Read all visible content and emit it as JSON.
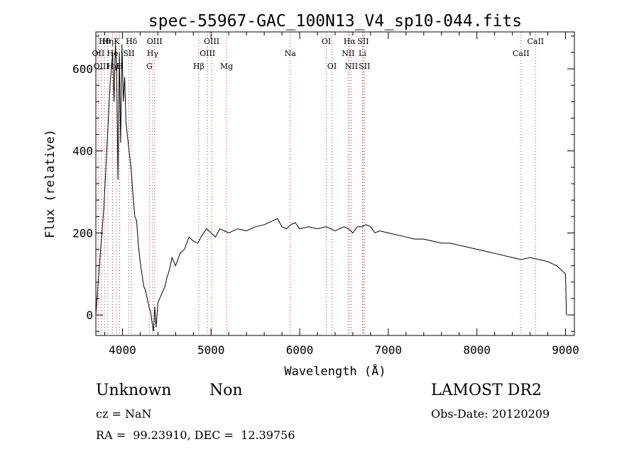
{
  "chart_data": {
    "type": "line",
    "title": "spec-55967-GAC_100N13_V4_sp10-044.fits",
    "xlabel": "Wavelength (Å)",
    "ylabel": "Flux (relative)",
    "xlim": [
      3700,
      9100
    ],
    "ylim": [
      -50,
      690
    ],
    "xticks": [
      4000,
      5000,
      6000,
      7000,
      8000,
      9000
    ],
    "yticks": [
      0,
      200,
      400,
      600
    ],
    "series": [
      {
        "x": [
          3700,
          3740,
          3790,
          3830,
          3860,
          3890,
          3905,
          3920,
          3935,
          3950,
          3965,
          3980,
          3995,
          4010,
          4025,
          4040,
          4060,
          4080,
          4100,
          4120,
          4140,
          4160,
          4180,
          4200,
          4220,
          4240,
          4260,
          4280,
          4300,
          4320,
          4335,
          4350,
          4365,
          4380,
          4400,
          4420,
          4440,
          4460,
          4480,
          4500,
          4530,
          4560,
          4600,
          4650,
          4700,
          4750,
          4800,
          4850,
          4900,
          4950,
          5000,
          5050,
          5100,
          5150,
          5200,
          5300,
          5400,
          5500,
          5600,
          5700,
          5750,
          5800,
          5850,
          5900,
          5950,
          6000,
          6100,
          6200,
          6300,
          6400,
          6500,
          6550,
          6600,
          6650,
          6700,
          6750,
          6800,
          6850,
          6900,
          7000,
          7100,
          7200,
          7300,
          7400,
          7500,
          7600,
          7700,
          7800,
          7900,
          8000,
          8100,
          8200,
          8300,
          8400,
          8500,
          8600,
          8700,
          8800,
          8850,
          8900,
          8950,
          9000,
          9010
        ],
        "values": [
          0,
          120,
          260,
          430,
          560,
          640,
          520,
          660,
          600,
          330,
          640,
          420,
          660,
          520,
          580,
          470,
          430,
          390,
          350,
          290,
          240,
          230,
          170,
          130,
          100,
          70,
          60,
          40,
          20,
          5,
          -20,
          -40,
          20,
          -30,
          30,
          40,
          50,
          60,
          70,
          90,
          110,
          140,
          120,
          150,
          160,
          190,
          180,
          175,
          195,
          210,
          200,
          190,
          210,
          205,
          200,
          210,
          205,
          215,
          220,
          230,
          235,
          215,
          210,
          220,
          225,
          210,
          215,
          210,
          215,
          205,
          215,
          210,
          200,
          215,
          215,
          220,
          215,
          200,
          205,
          200,
          195,
          190,
          185,
          185,
          180,
          175,
          175,
          170,
          165,
          160,
          155,
          150,
          145,
          140,
          135,
          140,
          135,
          130,
          125,
          120,
          110,
          100,
          0
        ]
      }
    ],
    "lines": [
      {
        "label": "Hθ",
        "wave": 3798,
        "row": 1,
        "color": "#000000"
      },
      {
        "label": "OII",
        "wave": 3727,
        "row": 2,
        "color": "#000000"
      },
      {
        "label": "OIII",
        "wave": 3760,
        "row": 3,
        "color": "#000000"
      },
      {
        "label": "Hη",
        "wave": 3835,
        "row": 1,
        "color": "#000000"
      },
      {
        "label": "He",
        "wave": 3889,
        "row": 2,
        "color": "#000000"
      },
      {
        "label": "Hγ",
        "wave": 3889,
        "row": 3,
        "color": "#000000"
      },
      {
        "label": "K",
        "wave": 3934,
        "row": 1,
        "color": "#000000"
      },
      {
        "label": "H",
        "wave": 3969,
        "row": 3,
        "color": "#000000"
      },
      {
        "label": "SII",
        "wave": 4072,
        "row": 2,
        "color": "#000000"
      },
      {
        "label": "Hδ",
        "wave": 4102,
        "row": 1,
        "color": "#000000"
      },
      {
        "label": "OIII",
        "wave": 4363,
        "row": 1,
        "color": "#000000"
      },
      {
        "label": "Hγ",
        "wave": 4340,
        "row": 2,
        "color": "#000000"
      },
      {
        "label": "G",
        "wave": 4304,
        "row": 3,
        "color": "#000000"
      },
      {
        "label": "Hβ",
        "wave": 4861,
        "row": 3,
        "color": "#000000"
      },
      {
        "label": "OIII",
        "wave": 5007,
        "row": 1,
        "color": "#000000"
      },
      {
        "label": "OIII",
        "wave": 4959,
        "row": 2,
        "color": "#000000"
      },
      {
        "label": "Mg",
        "wave": 5175,
        "row": 3,
        "color": "#000000"
      },
      {
        "label": "Na",
        "wave": 5893,
        "row": 2,
        "color": "#000000"
      },
      {
        "label": "OI",
        "wave": 6300,
        "row": 1,
        "color": "#000000"
      },
      {
        "label": "OI",
        "wave": 6364,
        "row": 3,
        "color": "#000000"
      },
      {
        "label": "Hα",
        "wave": 6563,
        "row": 1,
        "color": "#000000"
      },
      {
        "label": "SII",
        "wave": 6716,
        "row": 1,
        "color": "#000000"
      },
      {
        "label": "NII",
        "wave": 6548,
        "row": 2,
        "color": "#000000"
      },
      {
        "label": "Li",
        "wave": 6708,
        "row": 2,
        "color": "#000000"
      },
      {
        "label": "NII",
        "wave": 6584,
        "row": 3,
        "color": "#000000"
      },
      {
        "label": "SII",
        "wave": 6731,
        "row": 3,
        "color": "#000000"
      },
      {
        "label": "CaII",
        "wave": 8662,
        "row": 1,
        "color": "#000000"
      },
      {
        "label": "CaII",
        "wave": 8498,
        "row": 2,
        "color": "#000000"
      }
    ],
    "line_marker_color": "#cc3333",
    "grid": false
  },
  "footer": {
    "obj_class": "Unknown",
    "obj_subclass": "Non",
    "survey": "LAMOST DR2",
    "cz": "cz = NaN",
    "obsdate": "Obs-Date: 20120209",
    "radec": "RA =  99.23910, DEC =  12.39756"
  }
}
